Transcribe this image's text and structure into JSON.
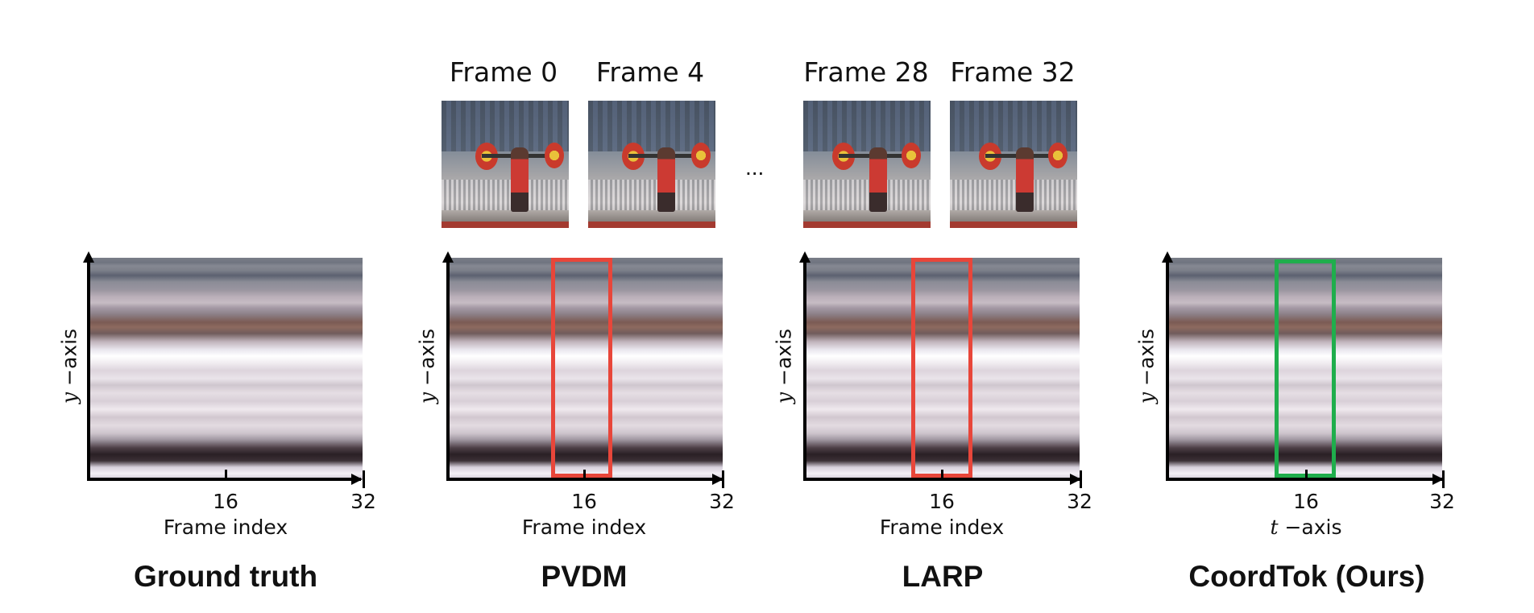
{
  "frames": {
    "labels": [
      "Frame 0",
      "Frame 4",
      "Frame 28",
      "Frame 32"
    ],
    "ellipsis": "..."
  },
  "panels": [
    {
      "title": "Ground truth",
      "xlabel": "Frame index",
      "ylabel_var": "y",
      "ylabel_rest": " −axis",
      "tick_mid": "16",
      "tick_end": "32",
      "highlight": null
    },
    {
      "title": "PVDM",
      "xlabel": "Frame index",
      "ylabel_var": "y",
      "ylabel_rest": " −axis",
      "tick_mid": "16",
      "tick_end": "32",
      "highlight": "#e8463a"
    },
    {
      "title": "LARP",
      "xlabel": "Frame index",
      "ylabel_var": "y",
      "ylabel_rest": " −axis",
      "tick_mid": "16",
      "tick_end": "32",
      "highlight": "#e8463a"
    },
    {
      "title": "CoordTok (Ours)",
      "xlabel_var": "t",
      "xlabel_rest": " −axis",
      "ylabel_var": "y",
      "ylabel_rest": " −axis",
      "tick_mid": "16",
      "tick_end": "32",
      "highlight": "#1fae4c"
    }
  ]
}
